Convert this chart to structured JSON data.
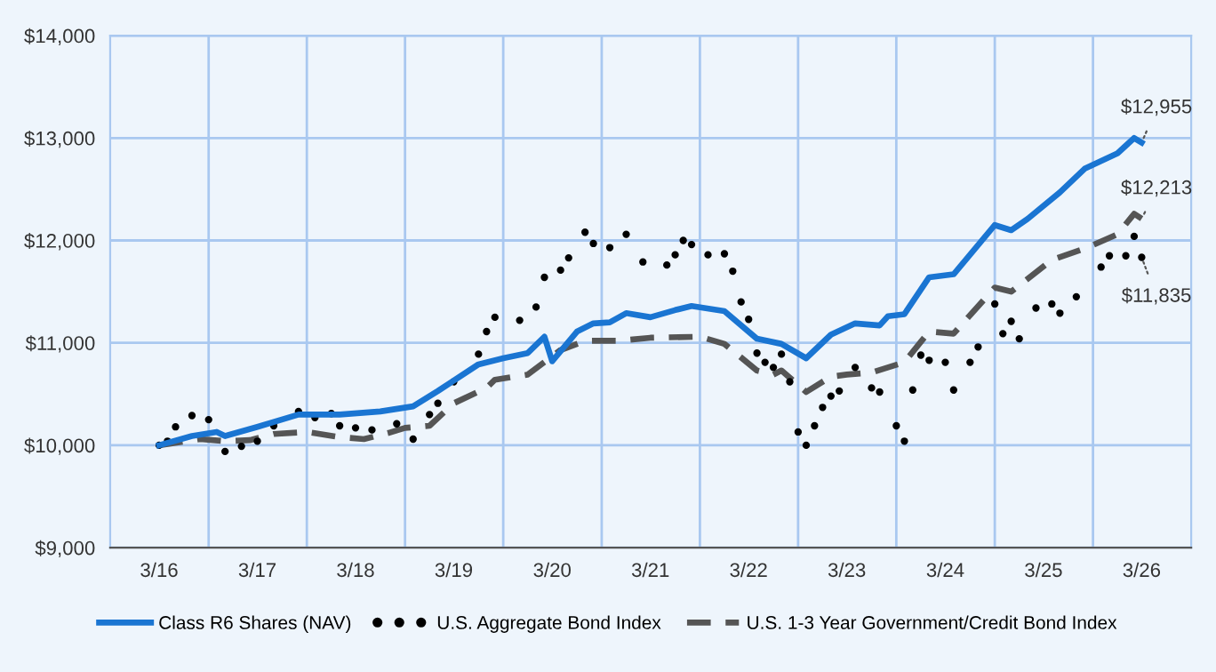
{
  "chart_data": {
    "type": "line",
    "xlim": [
      "2015-09",
      "2026-09"
    ],
    "ylim": [
      9000,
      14000
    ],
    "xticks": [
      {
        "value": "2016-03",
        "label": "3/16"
      },
      {
        "value": "2016-09",
        "label": null
      },
      {
        "value": "2017-03",
        "label": "3/17"
      },
      {
        "value": "2017-09",
        "label": null
      },
      {
        "value": "2018-03",
        "label": "3/18"
      },
      {
        "value": "2018-09",
        "label": null
      },
      {
        "value": "2019-03",
        "label": "3/19"
      },
      {
        "value": "2019-09",
        "label": null
      },
      {
        "value": "2020-03",
        "label": "3/20"
      },
      {
        "value": "2020-09",
        "label": null
      },
      {
        "value": "2021-03",
        "label": "3/21"
      },
      {
        "value": "2021-09",
        "label": null
      },
      {
        "value": "2022-03",
        "label": "3/22"
      },
      {
        "value": "2022-09",
        "label": null
      },
      {
        "value": "2023-03",
        "label": "3/23"
      },
      {
        "value": "2023-09",
        "label": null
      },
      {
        "value": "2024-03",
        "label": "3/24"
      },
      {
        "value": "2024-09",
        "label": null
      },
      {
        "value": "2025-03",
        "label": "3/25"
      },
      {
        "value": "2025-09",
        "label": null
      },
      {
        "value": "2026-03",
        "label": "3/26"
      }
    ],
    "yticks": [
      {
        "value": 9000,
        "label": "$9,000"
      },
      {
        "value": 10000,
        "label": "$10,000"
      },
      {
        "value": 11000,
        "label": "$11,000"
      },
      {
        "value": 12000,
        "label": "$12,000"
      },
      {
        "value": 13000,
        "label": "$13,000"
      },
      {
        "value": 14000,
        "label": "$14,000"
      }
    ],
    "grid": true,
    "legend": "bottom",
    "series": [
      {
        "name": "Class R6 Shares (NAV)",
        "color": "#1a75d2",
        "line_style": "solid",
        "marker": "none",
        "x": [
          "2016-03",
          "2016-07",
          "2016-10",
          "2016-11",
          "2017-03",
          "2017-08",
          "2018-01",
          "2018-06",
          "2018-10",
          "2019-01",
          "2019-06",
          "2019-09",
          "2019-12",
          "2020-02",
          "2020-03",
          "2020-06",
          "2020-08",
          "2020-10",
          "2020-12",
          "2021-03",
          "2021-06",
          "2021-08",
          "2021-12",
          "2022-04",
          "2022-07",
          "2022-10",
          "2023-01",
          "2023-04",
          "2023-07",
          "2023-08",
          "2023-10",
          "2024-01",
          "2024-04",
          "2024-09",
          "2024-11",
          "2025-01",
          "2025-05",
          "2025-08",
          "2025-12",
          "2026-02",
          "2026-03"
        ],
        "values": [
          10000,
          10090,
          10130,
          10090,
          10180,
          10300,
          10300,
          10330,
          10380,
          10530,
          10790,
          10850,
          10900,
          11060,
          10820,
          11110,
          11190,
          11200,
          11290,
          11250,
          11320,
          11360,
          11310,
          11040,
          10990,
          10850,
          11080,
          11190,
          11170,
          11260,
          11280,
          11640,
          11670,
          12150,
          12100,
          12210,
          12470,
          12700,
          12850,
          13000,
          12955
        ]
      },
      {
        "name": "U.S. Aggregate Bond Index",
        "type": "scatter",
        "color": "#000000",
        "marker": "circle",
        "x": [
          "2016-03",
          "2016-04",
          "2016-05",
          "2016-07",
          "2016-09",
          "2016-11",
          "2017-01",
          "2017-03",
          "2017-05",
          "2017-08",
          "2017-10",
          "2017-12",
          "2018-01",
          "2018-03",
          "2018-05",
          "2018-08",
          "2018-10",
          "2018-12",
          "2019-01",
          "2019-03",
          "2019-06",
          "2019-07",
          "2019-08",
          "2019-11",
          "2020-01",
          "2020-02",
          "2020-04",
          "2020-05",
          "2020-07",
          "2020-08",
          "2020-10",
          "2020-12",
          "2021-02",
          "2021-05",
          "2021-06",
          "2021-07",
          "2021-08",
          "2021-10",
          "2021-12",
          "2022-01",
          "2022-02",
          "2022-03",
          "2022-04",
          "2022-05",
          "2022-06",
          "2022-07",
          "2022-08",
          "2022-09",
          "2022-10",
          "2022-11",
          "2022-12",
          "2023-01",
          "2023-02",
          "2023-04",
          "2023-06",
          "2023-07",
          "2023-09",
          "2023-10",
          "2023-11",
          "2023-12",
          "2024-01",
          "2024-03",
          "2024-04",
          "2024-06",
          "2024-07",
          "2024-09",
          "2024-10",
          "2024-11",
          "2024-12",
          "2025-02",
          "2025-04",
          "2025-05",
          "2025-07",
          "2025-10",
          "2025-11",
          "2026-01",
          "2026-02",
          "2026-03"
        ],
        "values": [
          10000,
          10040,
          10180,
          10290,
          10250,
          9940,
          9990,
          10040,
          10190,
          10330,
          10270,
          10310,
          10190,
          10170,
          10150,
          10210,
          10060,
          10300,
          10410,
          10620,
          10890,
          11110,
          11250,
          11220,
          11350,
          11640,
          11710,
          11830,
          12080,
          11970,
          11930,
          12060,
          11790,
          11760,
          11860,
          12000,
          11960,
          11860,
          11870,
          11700,
          11400,
          11230,
          10900,
          10810,
          10760,
          10890,
          10620,
          10130,
          10000,
          10190,
          10370,
          10480,
          10530,
          10760,
          10560,
          10520,
          10190,
          10040,
          10540,
          10880,
          10830,
          10810,
          10540,
          10810,
          10960,
          11380,
          11090,
          11210,
          11040,
          11340,
          11380,
          11290,
          11450,
          11740,
          11850,
          11850,
          12040,
          11835
        ]
      },
      {
        "name": "U.S. 1-3 Year Government/Credit Bond Index",
        "color": "#555555",
        "line_style": "dashed",
        "marker": "none",
        "x": [
          "2016-03",
          "2016-08",
          "2016-11",
          "2017-02",
          "2017-05",
          "2017-09",
          "2018-01",
          "2018-04",
          "2018-07",
          "2018-09",
          "2018-12",
          "2019-03",
          "2019-07",
          "2019-08",
          "2019-12",
          "2020-04",
          "2020-07",
          "2020-11",
          "2021-03",
          "2021-09",
          "2021-12",
          "2022-04",
          "2022-06",
          "2022-07",
          "2022-10",
          "2023-01",
          "2023-03",
          "2023-06",
          "2023-10",
          "2024-01",
          "2024-04",
          "2024-09",
          "2024-11",
          "2025-04",
          "2025-08",
          "2025-12",
          "2026-02",
          "2026-03"
        ],
        "values": [
          10000,
          10060,
          10040,
          10050,
          10110,
          10130,
          10080,
          10060,
          10120,
          10170,
          10190,
          10410,
          10560,
          10640,
          10690,
          10930,
          11020,
          11020,
          11050,
          11060,
          10990,
          10730,
          10690,
          10730,
          10520,
          10670,
          10690,
          10710,
          10810,
          11110,
          11090,
          11540,
          11500,
          11810,
          11920,
          12060,
          12260,
          12213
        ]
      }
    ],
    "annotations": [
      {
        "text": "$12,955",
        "x": "2026-03",
        "y": 12955
      },
      {
        "text": "$12,213",
        "x": "2026-03",
        "y": 12213
      },
      {
        "text": "$11,835",
        "x": "2026-03",
        "y": 11835
      }
    ]
  }
}
